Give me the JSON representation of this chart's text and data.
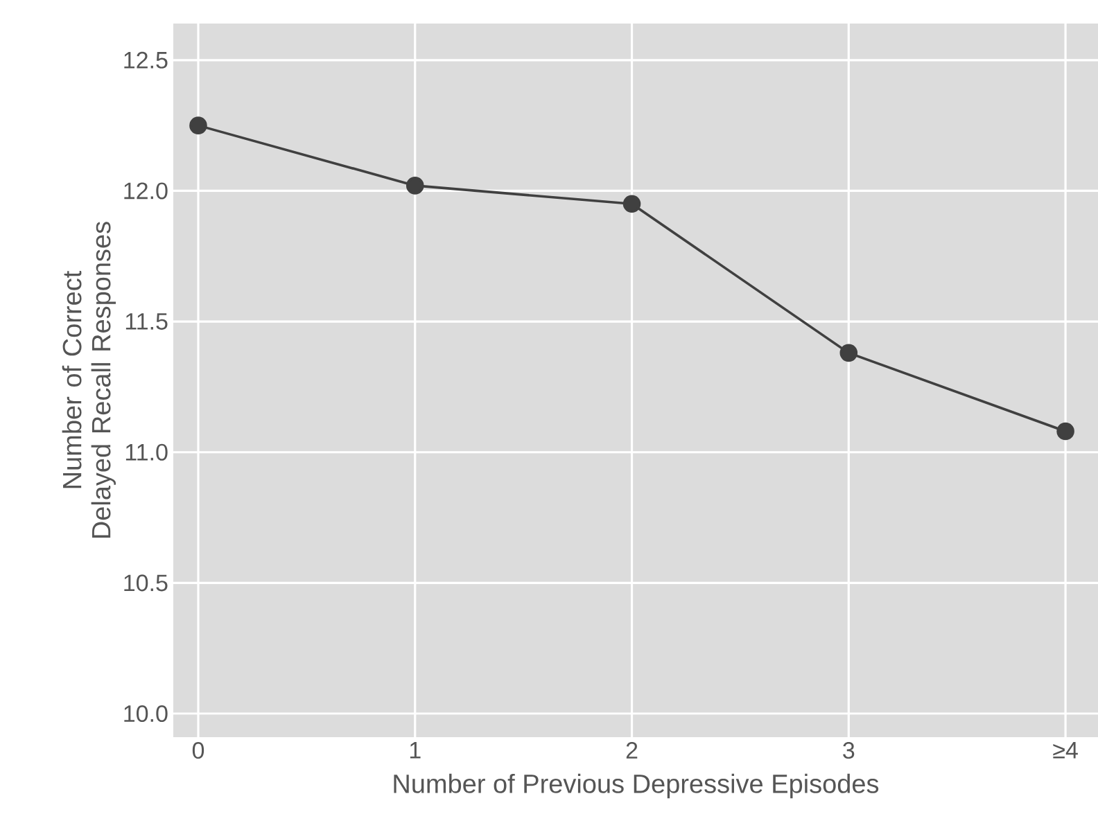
{
  "chart_data": {
    "type": "line",
    "xlabel": "Number of Previous Depressive Episodes",
    "ylabel": "Number of Correct Delayed Recall Responses",
    "categories": [
      "0",
      "1",
      "2",
      "3",
      "≥4"
    ],
    "series": [
      {
        "color": "#404040",
        "values": [
          12.25,
          12.02,
          11.95,
          11.38,
          11.08
        ]
      }
    ],
    "ylim": [
      9.91,
      12.64
    ],
    "yticks": [
      {
        "value": 10,
        "label": "10.0"
      },
      10.5,
      {
        "value": 11,
        "label": "11.0"
      },
      11.5,
      {
        "value": 12,
        "label": "12.0"
      },
      12.5
    ],
    "grid": true,
    "marker": "circle",
    "line_style": "solid"
  }
}
